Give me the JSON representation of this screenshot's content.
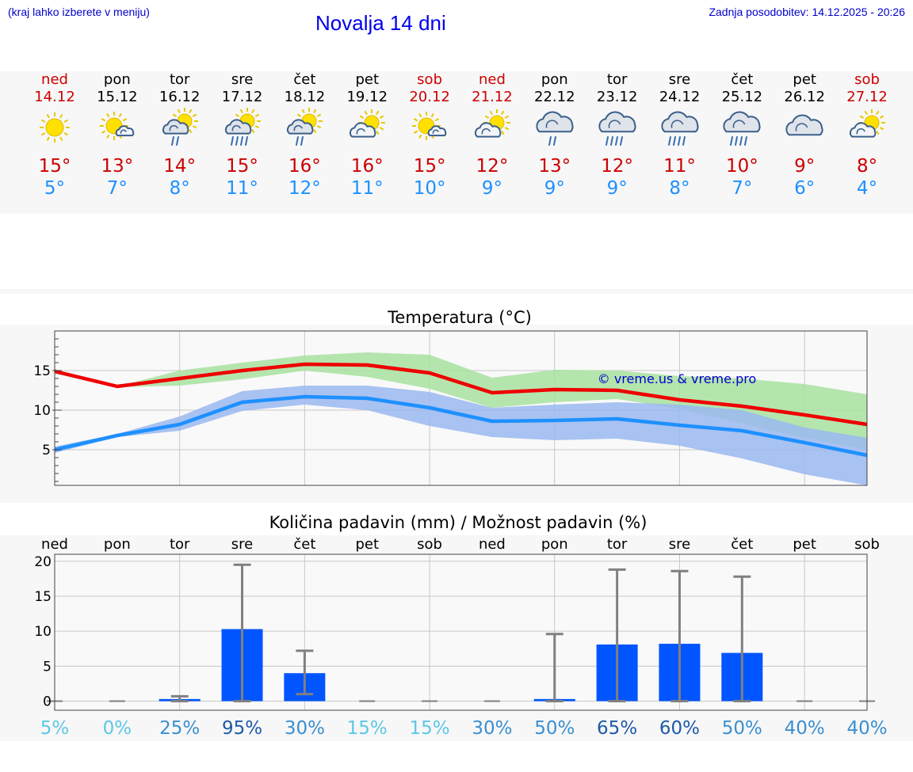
{
  "header": {
    "menu_hint": "(kraj lahko izberete v meniju)",
    "title": "Novalja 14 dni",
    "last_update": "Zadnja posodobitev: 14.12.2025 - 20:26"
  },
  "forecast": {
    "days": [
      {
        "name": "ned",
        "date": "14.12",
        "weekend": true,
        "icon": "sun-icon",
        "tmax": "15°",
        "tmin": "5°"
      },
      {
        "name": "pon",
        "date": "15.12",
        "weekend": false,
        "icon": "sun-small-cloud-icon",
        "tmax": "13°",
        "tmin": "7°"
      },
      {
        "name": "tor",
        "date": "16.12",
        "weekend": false,
        "icon": "sun-cloud-rain-icon",
        "tmax": "14°",
        "tmin": "8°"
      },
      {
        "name": "sre",
        "date": "17.12",
        "weekend": false,
        "icon": "sun-cloud-heavy-rain-icon",
        "tmax": "15°",
        "tmin": "11°"
      },
      {
        "name": "čet",
        "date": "18.12",
        "weekend": false,
        "icon": "sun-cloud-rain-icon",
        "tmax": "16°",
        "tmin": "12°"
      },
      {
        "name": "pet",
        "date": "19.12",
        "weekend": false,
        "icon": "sun-cloud-icon",
        "tmax": "16°",
        "tmin": "11°"
      },
      {
        "name": "sob",
        "date": "20.12",
        "weekend": true,
        "icon": "sun-small-cloud-icon",
        "tmax": "15°",
        "tmin": "10°"
      },
      {
        "name": "ned",
        "date": "21.12",
        "weekend": true,
        "icon": "sun-cloud-icon",
        "tmax": "12°",
        "tmin": "9°"
      },
      {
        "name": "pon",
        "date": "22.12",
        "weekend": false,
        "icon": "cloud-rain-icon",
        "tmax": "13°",
        "tmin": "9°"
      },
      {
        "name": "tor",
        "date": "23.12",
        "weekend": false,
        "icon": "cloud-heavy-rain-icon",
        "tmax": "12°",
        "tmin": "9°"
      },
      {
        "name": "sre",
        "date": "24.12",
        "weekend": false,
        "icon": "cloud-heavy-rain-icon",
        "tmax": "11°",
        "tmin": "8°"
      },
      {
        "name": "čet",
        "date": "25.12",
        "weekend": false,
        "icon": "cloud-heavy-rain-icon",
        "tmax": "10°",
        "tmin": "7°"
      },
      {
        "name": "pet",
        "date": "26.12",
        "weekend": false,
        "icon": "cloud-icon",
        "tmax": "9°",
        "tmin": "6°"
      },
      {
        "name": "sob",
        "date": "27.12",
        "weekend": true,
        "icon": "sun-cloud-icon",
        "tmax": "8°",
        "tmin": "4°"
      }
    ]
  },
  "colors": {
    "max_line": "#ee0000",
    "min_line": "#1e90ff",
    "max_band": "#a8e2a0",
    "min_band": "#9ab8f0",
    "bar": "#0055ff",
    "error_bar": "#808080",
    "watermark": "#0000cc"
  },
  "chart_data": [
    {
      "type": "line",
      "title": "Temperatura (°C)",
      "x": [
        0,
        1,
        2,
        3,
        4,
        5,
        6,
        7,
        8,
        9,
        10,
        11,
        12,
        13
      ],
      "ylim": [
        0.5,
        20
      ],
      "yticks": [
        5,
        10,
        15
      ],
      "ytick_labels": [
        "5",
        "10",
        "15"
      ],
      "grid": true,
      "watermark": "© vreme.us & vreme.pro",
      "series": [
        {
          "name": "max",
          "values": [
            14.9,
            13.0,
            14.0,
            15.0,
            15.8,
            15.7,
            14.7,
            12.2,
            12.6,
            12.5,
            11.3,
            10.5,
            9.4,
            8.2
          ]
        },
        {
          "name": "min",
          "values": [
            5.0,
            6.8,
            8.2,
            11.0,
            11.7,
            11.5,
            10.3,
            8.6,
            8.7,
            8.9,
            8.1,
            7.4,
            5.9,
            4.3
          ]
        },
        {
          "name": "max_range_upper",
          "values": [
            15.2,
            13.0,
            15.0,
            16.0,
            16.9,
            17.3,
            17.0,
            14.1,
            15.1,
            15.0,
            14.3,
            14.0,
            13.3,
            12.0
          ]
        },
        {
          "name": "max_range_lower",
          "values": [
            14.6,
            12.9,
            13.1,
            13.9,
            15.0,
            14.2,
            12.7,
            10.3,
            11.0,
            11.4,
            10.2,
            8.3,
            6.5,
            5.0
          ]
        },
        {
          "name": "min_range_upper",
          "values": [
            5.4,
            7.0,
            9.2,
            12.4,
            13.1,
            13.1,
            12.3,
            10.3,
            10.7,
            11.0,
            10.7,
            10.0,
            7.8,
            6.5
          ]
        },
        {
          "name": "min_range_lower",
          "values": [
            4.6,
            6.6,
            7.4,
            9.9,
            10.7,
            10.0,
            8.0,
            6.6,
            6.2,
            6.4,
            5.5,
            3.9,
            1.9,
            0.5
          ]
        }
      ]
    },
    {
      "type": "bar",
      "title": "Količina padavin (mm) / Možnost padavin (%)",
      "categories": [
        "ned",
        "pon",
        "tor",
        "sre",
        "čet",
        "pet",
        "sob",
        "ned",
        "pon",
        "tor",
        "sre",
        "čet",
        "pet",
        "sob"
      ],
      "ylim": [
        -1.3,
        21
      ],
      "yticks": [
        0,
        5,
        10,
        15,
        20
      ],
      "ytick_labels": [
        "0",
        "5",
        "10",
        "15",
        "20"
      ],
      "grid": true,
      "series": [
        {
          "name": "amount_mm",
          "values": [
            0,
            0,
            0.3,
            10.3,
            4.0,
            0,
            0,
            0,
            0.3,
            8.1,
            8.2,
            6.9,
            0,
            0
          ]
        },
        {
          "name": "range_max_mm",
          "values": [
            0,
            0,
            0.7,
            19.5,
            7.2,
            0,
            0,
            0,
            9.6,
            18.8,
            18.6,
            17.8,
            0,
            0
          ]
        },
        {
          "name": "range_min_mm",
          "values": [
            0,
            0,
            0,
            0,
            1.0,
            0,
            0,
            0,
            0,
            0,
            0,
            0,
            0,
            0
          ]
        }
      ],
      "probability": [
        "5%",
        "0%",
        "25%",
        "95%",
        "30%",
        "15%",
        "15%",
        "30%",
        "50%",
        "65%",
        "60%",
        "50%",
        "40%",
        "40%"
      ]
    }
  ]
}
